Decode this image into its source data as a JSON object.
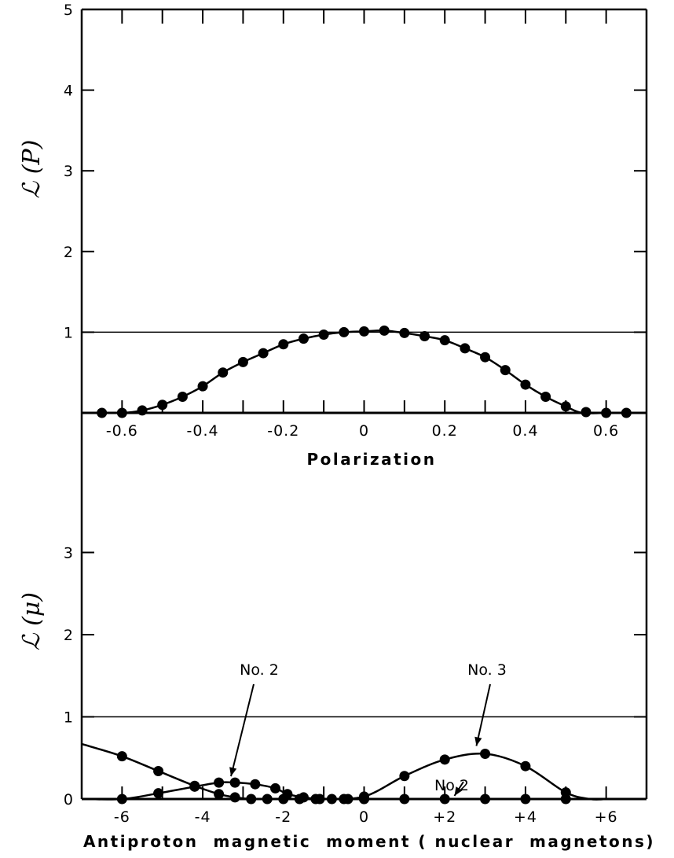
{
  "chart_data": [
    {
      "type": "line",
      "xlabel": "Polarization",
      "ylabel": "ℒ (P)",
      "xlim": [
        -0.7,
        0.7
      ],
      "ylim": [
        0,
        5
      ],
      "xticks": [
        -0.6,
        -0.4,
        -0.2,
        0,
        0.2,
        0.4,
        0.6
      ],
      "xtick_labels": [
        "-0.6",
        "-0.4",
        "-0.2",
        "0",
        "0.2",
        "0.4",
        "0.6"
      ],
      "yticks": [
        1,
        2,
        3,
        4,
        5
      ],
      "ytick_labels": [
        "1",
        "2",
        "3",
        "4",
        "5"
      ],
      "reference_line": 1,
      "series": [
        {
          "x": [
            -0.65,
            -0.6,
            -0.55,
            -0.5,
            -0.45,
            -0.4,
            -0.35,
            -0.3,
            -0.25,
            -0.2,
            -0.15,
            -0.1,
            -0.05,
            0,
            0.05,
            0.1,
            0.15,
            0.2,
            0.25,
            0.3,
            0.35,
            0.4,
            0.45,
            0.5,
            0.55,
            0.6,
            0.65
          ],
          "y": [
            0.0,
            0.0,
            0.03,
            0.1,
            0.2,
            0.33,
            0.5,
            0.63,
            0.74,
            0.85,
            0.92,
            0.97,
            1.0,
            1.01,
            1.02,
            0.99,
            0.95,
            0.9,
            0.8,
            0.69,
            0.53,
            0.35,
            0.2,
            0.08,
            0.01,
            0.0,
            0.0
          ],
          "curve_x": [
            -0.67,
            -0.6,
            -0.55,
            -0.5,
            -0.45,
            -0.4,
            -0.35,
            -0.3,
            -0.25,
            -0.2,
            -0.15,
            -0.1,
            -0.05,
            0,
            0.05,
            0.1,
            0.15,
            0.2,
            0.25,
            0.3,
            0.35,
            0.4,
            0.45,
            0.5,
            0.54,
            0.6,
            0.67
          ],
          "curve_y": [
            0.0,
            0.0,
            0.03,
            0.1,
            0.2,
            0.33,
            0.5,
            0.63,
            0.74,
            0.85,
            0.92,
            0.97,
            1.0,
            1.01,
            1.02,
            0.99,
            0.95,
            0.9,
            0.8,
            0.69,
            0.53,
            0.35,
            0.2,
            0.08,
            0.0,
            0.0,
            0.0
          ]
        }
      ]
    },
    {
      "type": "line",
      "xlabel": "Antiproton  magnetic  moment ( nuclear  magnetons)",
      "ylabel": "ℒ (μ)",
      "xlim": [
        -7,
        7
      ],
      "ylim": [
        0,
        3.8
      ],
      "xticks": [
        -6,
        -4,
        -2,
        0,
        2,
        4,
        6
      ],
      "xtick_labels": [
        "-6",
        "-4",
        "-2",
        "0",
        "+2",
        "+4",
        "+6"
      ],
      "yticks": [
        0,
        1,
        2,
        3
      ],
      "ytick_labels": [
        "0",
        "1",
        "2",
        "3"
      ],
      "reference_line": 1,
      "annotations": [
        {
          "text": "No. 2",
          "target": [
            -3.3,
            0.2
          ]
        },
        {
          "text": "No. 3",
          "target": [
            2.9,
            0.55
          ]
        },
        {
          "text": "No 2",
          "target": [
            2.2,
            0.0
          ]
        }
      ],
      "series": [
        {
          "x": [
            -6,
            -5.1,
            -4.2,
            -3.6,
            -3.2,
            -2.8,
            -2.4,
            -2,
            -1.6,
            -1.2,
            -0.8,
            -0.4,
            0,
            1,
            2,
            3,
            4,
            5
          ],
          "y": [
            0.52,
            0.34,
            0.16,
            0.06,
            0.02,
            0.0,
            0.0,
            0.0,
            0.0,
            0.0,
            0.0,
            0.0,
            0.0,
            0.0,
            0.0,
            0.0,
            0.0,
            0.0
          ],
          "curve_x": [
            -7,
            -6,
            -5.1,
            -4.2,
            -3.6,
            -3.2,
            -2.8,
            -2.4,
            -2,
            6.5
          ],
          "curve_y": [
            0.67,
            0.52,
            0.34,
            0.16,
            0.06,
            0.02,
            0.0,
            0.0,
            0.0,
            0.0
          ]
        },
        {
          "x": [
            -6,
            -5.1,
            -4.2,
            -3.6,
            -3.2,
            -2.7,
            -2.2,
            -1.9,
            -1.5,
            -1.1,
            -0.5,
            0
          ],
          "y": [
            0.0,
            0.07,
            0.15,
            0.2,
            0.2,
            0.18,
            0.13,
            0.06,
            0.02,
            0.0,
            0.0,
            0.0
          ],
          "curve_x": [
            -7,
            -6,
            -5.1,
            -4.2,
            -3.6,
            -3.2,
            -2.7,
            -2.2,
            -1.9,
            -1.5,
            -1.1,
            -0.5,
            0
          ],
          "curve_y": [
            0.0,
            0.0,
            0.07,
            0.15,
            0.2,
            0.2,
            0.18,
            0.13,
            0.06,
            0.02,
            0.0,
            0.0,
            0.0
          ]
        },
        {
          "x": [
            0,
            1,
            2,
            3,
            4,
            5
          ],
          "y": [
            0.03,
            0.28,
            0.48,
            0.55,
            0.4,
            0.08
          ],
          "curve_x": [
            -1,
            0,
            1,
            2,
            3,
            4,
            5,
            5.6,
            6
          ],
          "curve_y": [
            0.0,
            0.03,
            0.28,
            0.48,
            0.55,
            0.4,
            0.08,
            0.0,
            0.0
          ]
        }
      ]
    }
  ]
}
